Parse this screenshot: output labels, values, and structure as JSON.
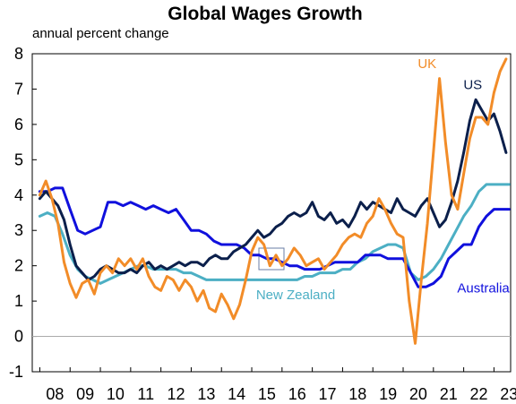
{
  "chart_data": {
    "type": "line",
    "title": "Global Wages Growth",
    "subtitle": "annual percent change",
    "xlabel": "",
    "ylabel": "",
    "xlim": [
      2007.75,
      2023.55
    ],
    "ylim": [
      -1,
      8
    ],
    "y_ticks": [
      "-1",
      "0",
      "1",
      "2",
      "3",
      "4",
      "5",
      "6",
      "7",
      "8"
    ],
    "x_ticks": [
      "08",
      "09",
      "10",
      "11",
      "12",
      "13",
      "14",
      "15",
      "16",
      "17",
      "18",
      "19",
      "20",
      "21",
      "22",
      "23"
    ],
    "grid": false,
    "zero_line": true,
    "colors": {
      "US": "#0b1f4b",
      "UK": "#f28c28",
      "Australia": "#1010dd",
      "New Zealand": "#4cafc4"
    },
    "series": [
      {
        "name": "UK",
        "points": [
          [
            2008.0,
            4.0
          ],
          [
            2008.2,
            4.4
          ],
          [
            2008.4,
            3.9
          ],
          [
            2008.6,
            3.2
          ],
          [
            2008.8,
            2.1
          ],
          [
            2009.0,
            1.5
          ],
          [
            2009.2,
            1.1
          ],
          [
            2009.4,
            1.5
          ],
          [
            2009.6,
            1.6
          ],
          [
            2009.8,
            1.2
          ],
          [
            2010.0,
            1.8
          ],
          [
            2010.2,
            2.0
          ],
          [
            2010.4,
            1.8
          ],
          [
            2010.6,
            2.2
          ],
          [
            2010.8,
            2.0
          ],
          [
            2011.0,
            2.2
          ],
          [
            2011.2,
            1.9
          ],
          [
            2011.4,
            2.2
          ],
          [
            2011.6,
            1.7
          ],
          [
            2011.8,
            1.4
          ],
          [
            2012.0,
            1.3
          ],
          [
            2012.2,
            1.7
          ],
          [
            2012.4,
            1.6
          ],
          [
            2012.6,
            1.3
          ],
          [
            2012.8,
            1.6
          ],
          [
            2013.0,
            1.4
          ],
          [
            2013.2,
            1.0
          ],
          [
            2013.4,
            1.3
          ],
          [
            2013.6,
            0.8
          ],
          [
            2013.8,
            0.7
          ],
          [
            2014.0,
            1.2
          ],
          [
            2014.2,
            0.9
          ],
          [
            2014.4,
            0.5
          ],
          [
            2014.6,
            0.9
          ],
          [
            2014.8,
            1.6
          ],
          [
            2015.0,
            2.4
          ],
          [
            2015.2,
            2.8
          ],
          [
            2015.4,
            2.6
          ],
          [
            2015.6,
            2.0
          ],
          [
            2015.8,
            2.3
          ],
          [
            2016.0,
            2.0
          ],
          [
            2016.2,
            2.2
          ],
          [
            2016.4,
            2.5
          ],
          [
            2016.6,
            2.3
          ],
          [
            2016.8,
            2.0
          ],
          [
            2017.0,
            2.1
          ],
          [
            2017.2,
            2.2
          ],
          [
            2017.4,
            1.9
          ],
          [
            2017.6,
            2.1
          ],
          [
            2017.8,
            2.3
          ],
          [
            2018.0,
            2.6
          ],
          [
            2018.2,
            2.8
          ],
          [
            2018.4,
            2.9
          ],
          [
            2018.6,
            2.8
          ],
          [
            2018.8,
            3.2
          ],
          [
            2019.0,
            3.4
          ],
          [
            2019.2,
            3.9
          ],
          [
            2019.4,
            3.6
          ],
          [
            2019.6,
            3.2
          ],
          [
            2019.8,
            2.9
          ],
          [
            2020.0,
            2.8
          ],
          [
            2020.2,
            1.0
          ],
          [
            2020.4,
            -0.2
          ],
          [
            2020.6,
            1.6
          ],
          [
            2020.8,
            3.2
          ],
          [
            2021.0,
            5.2
          ],
          [
            2021.2,
            7.3
          ],
          [
            2021.4,
            5.5
          ],
          [
            2021.6,
            4.0
          ],
          [
            2021.8,
            3.6
          ],
          [
            2022.0,
            4.6
          ],
          [
            2022.2,
            5.6
          ],
          [
            2022.4,
            6.2
          ],
          [
            2022.6,
            6.2
          ],
          [
            2022.8,
            6.0
          ],
          [
            2023.0,
            6.9
          ],
          [
            2023.2,
            7.5
          ],
          [
            2023.4,
            7.85
          ]
        ]
      },
      {
        "name": "US",
        "points": [
          [
            2008.0,
            3.9
          ],
          [
            2008.2,
            4.1
          ],
          [
            2008.4,
            3.9
          ],
          [
            2008.6,
            3.7
          ],
          [
            2008.8,
            3.3
          ],
          [
            2009.0,
            2.6
          ],
          [
            2009.2,
            2.0
          ],
          [
            2009.4,
            1.8
          ],
          [
            2009.6,
            1.6
          ],
          [
            2009.8,
            1.7
          ],
          [
            2010.0,
            1.9
          ],
          [
            2010.2,
            2.0
          ],
          [
            2010.4,
            1.9
          ],
          [
            2010.6,
            1.8
          ],
          [
            2010.8,
            1.8
          ],
          [
            2011.0,
            1.9
          ],
          [
            2011.2,
            1.8
          ],
          [
            2011.4,
            2.0
          ],
          [
            2011.6,
            2.1
          ],
          [
            2011.8,
            1.9
          ],
          [
            2012.0,
            2.0
          ],
          [
            2012.2,
            1.9
          ],
          [
            2012.4,
            2.0
          ],
          [
            2012.6,
            2.1
          ],
          [
            2012.8,
            2.0
          ],
          [
            2013.0,
            2.1
          ],
          [
            2013.2,
            2.1
          ],
          [
            2013.4,
            2.0
          ],
          [
            2013.6,
            2.2
          ],
          [
            2013.8,
            2.3
          ],
          [
            2014.0,
            2.2
          ],
          [
            2014.2,
            2.2
          ],
          [
            2014.4,
            2.4
          ],
          [
            2014.6,
            2.5
          ],
          [
            2014.8,
            2.6
          ],
          [
            2015.0,
            2.8
          ],
          [
            2015.2,
            3.0
          ],
          [
            2015.4,
            2.8
          ],
          [
            2015.6,
            2.9
          ],
          [
            2015.8,
            3.1
          ],
          [
            2016.0,
            3.2
          ],
          [
            2016.2,
            3.4
          ],
          [
            2016.4,
            3.5
          ],
          [
            2016.6,
            3.4
          ],
          [
            2016.8,
            3.5
          ],
          [
            2017.0,
            3.8
          ],
          [
            2017.2,
            3.4
          ],
          [
            2017.4,
            3.3
          ],
          [
            2017.6,
            3.5
          ],
          [
            2017.8,
            3.2
          ],
          [
            2018.0,
            3.3
          ],
          [
            2018.2,
            3.1
          ],
          [
            2018.4,
            3.4
          ],
          [
            2018.6,
            3.8
          ],
          [
            2018.8,
            3.6
          ],
          [
            2019.0,
            3.8
          ],
          [
            2019.2,
            3.7
          ],
          [
            2019.4,
            3.6
          ],
          [
            2019.6,
            3.5
          ],
          [
            2019.8,
            3.9
          ],
          [
            2020.0,
            3.6
          ],
          [
            2020.2,
            3.5
          ],
          [
            2020.4,
            3.4
          ],
          [
            2020.6,
            3.7
          ],
          [
            2020.8,
            3.9
          ],
          [
            2021.0,
            3.5
          ],
          [
            2021.2,
            3.1
          ],
          [
            2021.4,
            3.3
          ],
          [
            2021.6,
            3.8
          ],
          [
            2021.8,
            4.4
          ],
          [
            2022.0,
            5.2
          ],
          [
            2022.2,
            6.1
          ],
          [
            2022.4,
            6.7
          ],
          [
            2022.6,
            6.4
          ],
          [
            2022.8,
            6.1
          ],
          [
            2023.0,
            6.3
          ],
          [
            2023.2,
            5.8
          ],
          [
            2023.4,
            5.2
          ]
        ]
      },
      {
        "name": "Australia",
        "points": [
          [
            2008.0,
            4.1
          ],
          [
            2008.25,
            4.1
          ],
          [
            2008.5,
            4.2
          ],
          [
            2008.75,
            4.2
          ],
          [
            2009.0,
            3.6
          ],
          [
            2009.25,
            3.0
          ],
          [
            2009.5,
            2.9
          ],
          [
            2009.75,
            3.0
          ],
          [
            2010.0,
            3.1
          ],
          [
            2010.25,
            3.8
          ],
          [
            2010.5,
            3.8
          ],
          [
            2010.75,
            3.7
          ],
          [
            2011.0,
            3.8
          ],
          [
            2011.25,
            3.7
          ],
          [
            2011.5,
            3.6
          ],
          [
            2011.75,
            3.7
          ],
          [
            2012.0,
            3.6
          ],
          [
            2012.25,
            3.5
          ],
          [
            2012.5,
            3.6
          ],
          [
            2012.75,
            3.3
          ],
          [
            2013.0,
            3.0
          ],
          [
            2013.25,
            3.0
          ],
          [
            2013.5,
            2.9
          ],
          [
            2013.75,
            2.7
          ],
          [
            2014.0,
            2.6
          ],
          [
            2014.25,
            2.6
          ],
          [
            2014.5,
            2.6
          ],
          [
            2014.75,
            2.5
          ],
          [
            2015.0,
            2.3
          ],
          [
            2015.25,
            2.3
          ],
          [
            2015.5,
            2.2
          ],
          [
            2015.75,
            2.2
          ],
          [
            2016.0,
            2.1
          ],
          [
            2016.25,
            2.0
          ],
          [
            2016.5,
            2.0
          ],
          [
            2016.75,
            1.9
          ],
          [
            2017.0,
            1.9
          ],
          [
            2017.25,
            1.9
          ],
          [
            2017.5,
            2.0
          ],
          [
            2017.75,
            2.1
          ],
          [
            2018.0,
            2.1
          ],
          [
            2018.25,
            2.1
          ],
          [
            2018.5,
            2.1
          ],
          [
            2018.75,
            2.3
          ],
          [
            2019.0,
            2.3
          ],
          [
            2019.25,
            2.3
          ],
          [
            2019.5,
            2.2
          ],
          [
            2019.75,
            2.2
          ],
          [
            2020.0,
            2.2
          ],
          [
            2020.25,
            1.8
          ],
          [
            2020.5,
            1.4
          ],
          [
            2020.75,
            1.4
          ],
          [
            2021.0,
            1.5
          ],
          [
            2021.25,
            1.7
          ],
          [
            2021.5,
            2.2
          ],
          [
            2021.75,
            2.4
          ],
          [
            2022.0,
            2.6
          ],
          [
            2022.25,
            2.6
          ],
          [
            2022.5,
            3.1
          ],
          [
            2022.75,
            3.4
          ],
          [
            2023.0,
            3.6
          ],
          [
            2023.25,
            3.6
          ],
          [
            2023.5,
            3.6
          ]
        ]
      },
      {
        "name": "New Zealand",
        "points": [
          [
            2008.0,
            3.4
          ],
          [
            2008.25,
            3.5
          ],
          [
            2008.5,
            3.4
          ],
          [
            2008.75,
            2.9
          ],
          [
            2009.0,
            2.3
          ],
          [
            2009.25,
            1.9
          ],
          [
            2009.5,
            1.7
          ],
          [
            2009.75,
            1.6
          ],
          [
            2010.0,
            1.5
          ],
          [
            2010.25,
            1.6
          ],
          [
            2010.5,
            1.7
          ],
          [
            2010.75,
            1.8
          ],
          [
            2011.0,
            1.9
          ],
          [
            2011.25,
            2.0
          ],
          [
            2011.5,
            2.0
          ],
          [
            2011.75,
            1.9
          ],
          [
            2012.0,
            1.9
          ],
          [
            2012.25,
            1.9
          ],
          [
            2012.5,
            1.9
          ],
          [
            2012.75,
            1.8
          ],
          [
            2013.0,
            1.8
          ],
          [
            2013.25,
            1.7
          ],
          [
            2013.5,
            1.6
          ],
          [
            2013.75,
            1.6
          ],
          [
            2014.0,
            1.6
          ],
          [
            2014.25,
            1.6
          ],
          [
            2014.5,
            1.6
          ],
          [
            2014.75,
            1.6
          ],
          [
            2015.0,
            1.6
          ],
          [
            2015.25,
            1.6
          ],
          [
            2015.5,
            1.6
          ],
          [
            2015.75,
            1.6
          ],
          [
            2016.0,
            1.6
          ],
          [
            2016.25,
            1.6
          ],
          [
            2016.5,
            1.6
          ],
          [
            2016.75,
            1.7
          ],
          [
            2017.0,
            1.7
          ],
          [
            2017.25,
            1.8
          ],
          [
            2017.5,
            1.8
          ],
          [
            2017.75,
            1.8
          ],
          [
            2018.0,
            1.9
          ],
          [
            2018.25,
            1.9
          ],
          [
            2018.5,
            2.1
          ],
          [
            2018.75,
            2.2
          ],
          [
            2019.0,
            2.4
          ],
          [
            2019.25,
            2.5
          ],
          [
            2019.5,
            2.6
          ],
          [
            2019.75,
            2.6
          ],
          [
            2020.0,
            2.5
          ],
          [
            2020.25,
            1.8
          ],
          [
            2020.5,
            1.6
          ],
          [
            2020.75,
            1.7
          ],
          [
            2021.0,
            1.9
          ],
          [
            2021.25,
            2.2
          ],
          [
            2021.5,
            2.6
          ],
          [
            2021.75,
            3.0
          ],
          [
            2022.0,
            3.4
          ],
          [
            2022.25,
            3.7
          ],
          [
            2022.5,
            4.1
          ],
          [
            2022.75,
            4.3
          ],
          [
            2023.0,
            4.3
          ],
          [
            2023.25,
            4.3
          ],
          [
            2023.5,
            4.3
          ]
        ]
      }
    ],
    "annotations": [
      {
        "text": "UK",
        "series": "UK"
      },
      {
        "text": "US",
        "series": "US"
      },
      {
        "text": "Australia",
        "series": "Australia"
      },
      {
        "text": "New Zealand",
        "series": "New Zealand"
      }
    ]
  }
}
